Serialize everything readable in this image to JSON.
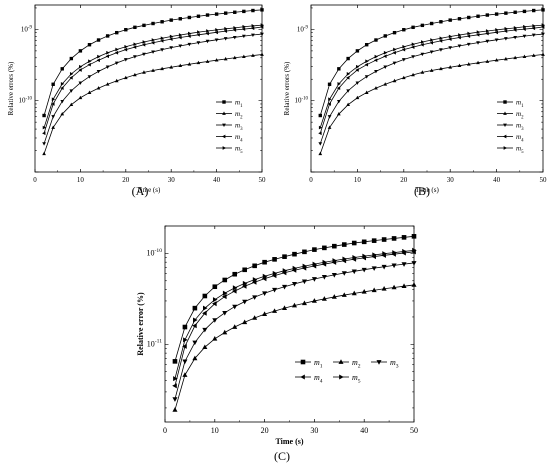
{
  "chart_data": [
    {
      "type": "line",
      "panel_label": "(A)",
      "xlabel": "Time (s)",
      "ylabel": "Relative errors (%)",
      "xlim": [
        0,
        50
      ],
      "ylim": [
        1e-11,
        2.2e-09
      ],
      "yscale": "log",
      "xticks": [
        "0",
        "10",
        "20",
        "30",
        "40",
        "50"
      ],
      "yticks": [
        {
          "label_base": "10",
          "label_exp": "-9",
          "value": 1e-09
        },
        {
          "label_base": "10",
          "label_exp": "-10",
          "value": 1e-10
        }
      ],
      "grid": false,
      "legend_position": "right",
      "x": [
        2,
        4,
        6,
        8,
        10,
        12,
        14,
        16,
        18,
        20,
        22,
        24,
        26,
        28,
        30,
        32,
        34,
        36,
        38,
        40,
        42,
        44,
        46,
        48,
        50
      ],
      "series": [
        {
          "name": "m",
          "subscript": "1",
          "marker": "square",
          "values": [
            6.2e-11,
            1.7e-10,
            2.8e-10,
            3.9e-10,
            5e-10,
            6.1e-10,
            7.1e-10,
            8.1e-10,
            9e-10,
            9.9e-10,
            1.07e-09,
            1.14e-09,
            1.21e-09,
            1.28e-09,
            1.35e-09,
            1.41e-09,
            1.47e-09,
            1.53e-09,
            1.59e-09,
            1.64e-09,
            1.69e-09,
            1.74e-09,
            1.79e-09,
            1.84e-09,
            1.88e-09
          ]
        },
        {
          "name": "m",
          "subscript": "2",
          "marker": "triangle-up",
          "values": [
            1.8e-11,
            4.2e-11,
            6.5e-11,
            8.8e-11,
            1.1e-10,
            1.3e-10,
            1.5e-10,
            1.7e-10,
            1.9e-10,
            2.1e-10,
            2.3e-10,
            2.5e-10,
            2.65e-10,
            2.8e-10,
            2.95e-10,
            3.1e-10,
            3.25e-10,
            3.4e-10,
            3.55e-10,
            3.7e-10,
            3.85e-10,
            4e-10,
            4.15e-10,
            4.3e-10,
            4.45e-10
          ]
        },
        {
          "name": "m",
          "subscript": "3",
          "marker": "triangle-down",
          "values": [
            2.5e-11,
            6e-11,
            9.8e-11,
            1.38e-10,
            1.78e-10,
            2.18e-10,
            2.58e-10,
            2.98e-10,
            3.38e-10,
            3.78e-10,
            4.15e-10,
            4.5e-10,
            4.85e-10,
            5.2e-10,
            5.55e-10,
            5.88e-10,
            6.2e-10,
            6.52e-10,
            6.84e-10,
            7.15e-10,
            7.45e-10,
            7.75e-10,
            8.05e-10,
            8.35e-10,
            8.6e-10
          ]
        },
        {
          "name": "m",
          "subscript": "4",
          "marker": "triangle-left",
          "values": [
            3.5e-11,
            9e-11,
            1.5e-10,
            2.1e-10,
            2.7e-10,
            3.2e-10,
            3.7e-10,
            4.2e-10,
            4.7e-10,
            5.2e-10,
            5.65e-10,
            6.1e-10,
            6.5e-10,
            6.9e-10,
            7.3e-10,
            7.7e-10,
            8.05e-10,
            8.4e-10,
            8.75e-10,
            9.1e-10,
            9.45e-10,
            9.8e-10,
            1.01e-09,
            1.04e-09,
            1.08e-09
          ]
        },
        {
          "name": "m",
          "subscript": "5",
          "marker": "triangle-right",
          "values": [
            4.2e-11,
            1.05e-10,
            1.72e-10,
            2.38e-10,
            3e-10,
            3.58e-10,
            4.15e-10,
            4.7e-10,
            5.22e-10,
            5.72e-10,
            6.2e-10,
            6.65e-10,
            7.1e-10,
            7.52e-10,
            7.95e-10,
            8.35e-10,
            8.75e-10,
            9.15e-10,
            9.5e-10,
            9.85e-10,
            1.02e-09,
            1.05e-09,
            1.09e-09,
            1.12e-09,
            1.15e-09
          ]
        }
      ]
    },
    {
      "type": "line",
      "panel_label": "(B)",
      "xlabel": "Time (s)",
      "ylabel": "Relative errors (%)",
      "xlim": [
        0,
        50
      ],
      "ylim": [
        1e-11,
        2.2e-09
      ],
      "yscale": "log",
      "xticks": [
        "0",
        "10",
        "20",
        "30",
        "40",
        "50"
      ],
      "yticks": [
        {
          "label_base": "10",
          "label_exp": "-9",
          "value": 1e-09
        },
        {
          "label_base": "10",
          "label_exp": "-10",
          "value": 1e-10
        }
      ],
      "grid": false,
      "legend_position": "right",
      "x": [
        2,
        4,
        6,
        8,
        10,
        12,
        14,
        16,
        18,
        20,
        22,
        24,
        26,
        28,
        30,
        32,
        34,
        36,
        38,
        40,
        42,
        44,
        46,
        48,
        50
      ],
      "series": [
        {
          "name": "m",
          "subscript": "1",
          "marker": "square",
          "values": [
            6.2e-11,
            1.7e-10,
            2.8e-10,
            3.9e-10,
            5e-10,
            6.1e-10,
            7.1e-10,
            8.1e-10,
            9e-10,
            9.9e-10,
            1.07e-09,
            1.14e-09,
            1.21e-09,
            1.28e-09,
            1.35e-09,
            1.41e-09,
            1.47e-09,
            1.53e-09,
            1.59e-09,
            1.64e-09,
            1.69e-09,
            1.74e-09,
            1.79e-09,
            1.84e-09,
            1.88e-09
          ]
        },
        {
          "name": "m",
          "subscript": "2",
          "marker": "triangle-up",
          "values": [
            1.8e-11,
            4.2e-11,
            6.5e-11,
            8.8e-11,
            1.1e-10,
            1.3e-10,
            1.5e-10,
            1.7e-10,
            1.9e-10,
            2.1e-10,
            2.3e-10,
            2.5e-10,
            2.65e-10,
            2.8e-10,
            2.95e-10,
            3.1e-10,
            3.25e-10,
            3.4e-10,
            3.55e-10,
            3.7e-10,
            3.85e-10,
            4e-10,
            4.15e-10,
            4.3e-10,
            4.45e-10
          ]
        },
        {
          "name": "m",
          "subscript": "3",
          "marker": "triangle-down",
          "values": [
            2.5e-11,
            6e-11,
            9.8e-11,
            1.38e-10,
            1.78e-10,
            2.18e-10,
            2.58e-10,
            2.98e-10,
            3.38e-10,
            3.78e-10,
            4.15e-10,
            4.5e-10,
            4.85e-10,
            5.2e-10,
            5.55e-10,
            5.88e-10,
            6.2e-10,
            6.52e-10,
            6.84e-10,
            7.15e-10,
            7.45e-10,
            7.75e-10,
            8.05e-10,
            8.35e-10,
            8.6e-10
          ]
        },
        {
          "name": "m",
          "subscript": "4",
          "marker": "triangle-left",
          "values": [
            3.5e-11,
            9e-11,
            1.5e-10,
            2.1e-10,
            2.7e-10,
            3.2e-10,
            3.7e-10,
            4.2e-10,
            4.7e-10,
            5.2e-10,
            5.65e-10,
            6.1e-10,
            6.5e-10,
            6.9e-10,
            7.3e-10,
            7.7e-10,
            8.05e-10,
            8.4e-10,
            8.75e-10,
            9.1e-10,
            9.45e-10,
            9.8e-10,
            1.01e-09,
            1.04e-09,
            1.08e-09
          ]
        },
        {
          "name": "m",
          "subscript": "5",
          "marker": "triangle-right",
          "values": [
            4.2e-11,
            1.05e-10,
            1.72e-10,
            2.38e-10,
            3e-10,
            3.58e-10,
            4.15e-10,
            4.7e-10,
            5.22e-10,
            5.72e-10,
            6.2e-10,
            6.65e-10,
            7.1e-10,
            7.52e-10,
            7.95e-10,
            8.35e-10,
            8.75e-10,
            9.15e-10,
            9.5e-10,
            9.85e-10,
            1.02e-09,
            1.05e-09,
            1.09e-09,
            1.12e-09,
            1.15e-09
          ]
        }
      ]
    },
    {
      "type": "line",
      "panel_label": "(C)",
      "xlabel": "Time (s)",
      "ylabel": "Relative error (%)",
      "xlim": [
        0,
        50
      ],
      "ylim": [
        1.4e-12,
        2e-10
      ],
      "yscale": "log",
      "xticks": [
        "0",
        "10",
        "20",
        "30",
        "40",
        "50"
      ],
      "yticks": [
        {
          "label_base": "10",
          "label_exp": "-10",
          "value": 1e-10
        },
        {
          "label_base": "10",
          "label_exp": "-11",
          "value": 1e-11
        }
      ],
      "grid": false,
      "legend_position": "right",
      "x": [
        2,
        4,
        6,
        8,
        10,
        12,
        14,
        16,
        18,
        20,
        22,
        24,
        26,
        28,
        30,
        32,
        34,
        36,
        38,
        40,
        42,
        44,
        46,
        48,
        50
      ],
      "series": [
        {
          "name": "m",
          "subscript": "1",
          "marker": "square",
          "values": [
            6.5e-12,
            1.55e-11,
            2.5e-11,
            3.4e-11,
            4.3e-11,
            5.1e-11,
            5.9e-11,
            6.6e-11,
            7.3e-11,
            8e-11,
            8.6e-11,
            9.2e-11,
            9.8e-11,
            1.04e-10,
            1.1e-10,
            1.15e-10,
            1.2e-10,
            1.25e-10,
            1.3e-10,
            1.34e-10,
            1.38e-10,
            1.42e-10,
            1.46e-10,
            1.5e-10,
            1.54e-10
          ]
        },
        {
          "name": "m",
          "subscript": "2",
          "marker": "triangle-up",
          "values": [
            1.9e-12,
            4.6e-12,
            7e-12,
            9.3e-12,
            1.15e-11,
            1.35e-11,
            1.55e-11,
            1.75e-11,
            1.95e-11,
            2.15e-11,
            2.32e-11,
            2.5e-11,
            2.67e-11,
            2.83e-11,
            3e-11,
            3.16e-11,
            3.32e-11,
            3.48e-11,
            3.63e-11,
            3.78e-11,
            3.93e-11,
            4.08e-11,
            4.22e-11,
            4.36e-11,
            4.5e-11
          ]
        },
        {
          "name": "m",
          "subscript": "3",
          "marker": "triangle-down",
          "values": [
            2.5e-12,
            6.5e-12,
            1.05e-11,
            1.45e-11,
            1.85e-11,
            2.22e-11,
            2.6e-11,
            2.95e-11,
            3.3e-11,
            3.65e-11,
            3.98e-11,
            4.3e-11,
            4.62e-11,
            4.93e-11,
            5.23e-11,
            5.52e-11,
            5.8e-11,
            6.08e-11,
            6.35e-11,
            6.62e-11,
            6.88e-11,
            7.13e-11,
            7.38e-11,
            7.62e-11,
            7.85e-11
          ]
        },
        {
          "name": "m",
          "subscript": "4",
          "marker": "triangle-left",
          "values": [
            3.5e-12,
            9.5e-12,
            1.6e-11,
            2.2e-11,
            2.8e-11,
            3.35e-11,
            3.85e-11,
            4.35e-11,
            4.82e-11,
            5.27e-11,
            5.7e-11,
            6.12e-11,
            6.52e-11,
            6.9e-11,
            7.27e-11,
            7.63e-11,
            7.97e-11,
            8.3e-11,
            8.62e-11,
            8.93e-11,
            9.23e-11,
            9.52e-11,
            9.8e-11,
            1.01e-10,
            1.04e-10
          ]
        },
        {
          "name": "m",
          "subscript": "5",
          "marker": "triangle-right",
          "values": [
            4.2e-12,
            1.12e-11,
            1.85e-11,
            2.5e-11,
            3.1e-11,
            3.65e-11,
            4.18e-11,
            4.68e-11,
            5.15e-11,
            5.6e-11,
            6.03e-11,
            6.45e-11,
            6.85e-11,
            7.24e-11,
            7.62e-11,
            7.98e-11,
            8.33e-11,
            8.67e-11,
            9e-11,
            9.32e-11,
            9.63e-11,
            9.93e-11,
            1.02e-10,
            1.05e-10,
            1.08e-10
          ]
        }
      ]
    }
  ]
}
